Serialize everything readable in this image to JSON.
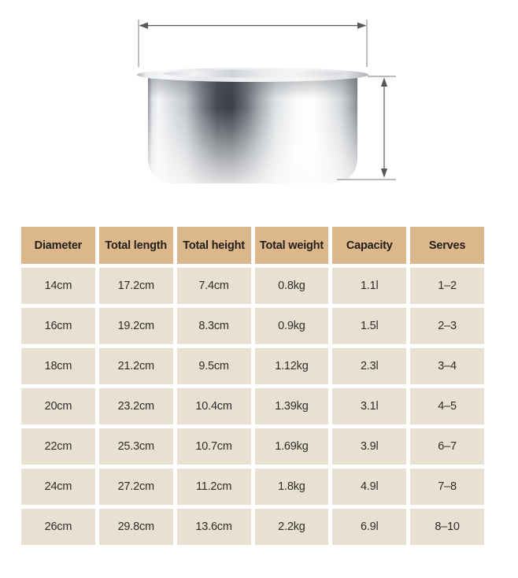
{
  "colors": {
    "background": "#ffffff",
    "table_header_bg": "#ddb78c",
    "table_cell_bg": "#e8e0d1",
    "table_header_text": "#242019",
    "table_cell_text": "#2e2d2a",
    "arrow": "#55585c",
    "arrow_tick": "#8f9296"
  },
  "diagram": {
    "product_icon": "stainless-steel-pot",
    "width_dimension_icon": "horizontal-double-arrow",
    "height_dimension_icon": "vertical-double-arrow"
  },
  "table": {
    "headers": [
      "Diameter",
      "Total length",
      "Total height",
      "Total weight",
      "Capacity",
      "Serves"
    ],
    "rows": [
      [
        "14cm",
        "17.2cm",
        "7.4cm",
        "0.8kg",
        "1.1l",
        "1–2"
      ],
      [
        "16cm",
        "19.2cm",
        "8.3cm",
        "0.9kg",
        "1.5l",
        "2–3"
      ],
      [
        "18cm",
        "21.2cm",
        "9.5cm",
        "1.12kg",
        "2.3l",
        "3–4"
      ],
      [
        "20cm",
        "23.2cm",
        "10.4cm",
        "1.39kg",
        "3.1l",
        "4–5"
      ],
      [
        "22cm",
        "25.3cm",
        "10.7cm",
        "1.69kg",
        "3.9l",
        "6–7"
      ],
      [
        "24cm",
        "27.2cm",
        "11.2cm",
        "1.8kg",
        "4.9l",
        "7–8"
      ],
      [
        "26cm",
        "29.8cm",
        "13.6cm",
        "2.2kg",
        "6.9l",
        "8–10"
      ]
    ]
  }
}
